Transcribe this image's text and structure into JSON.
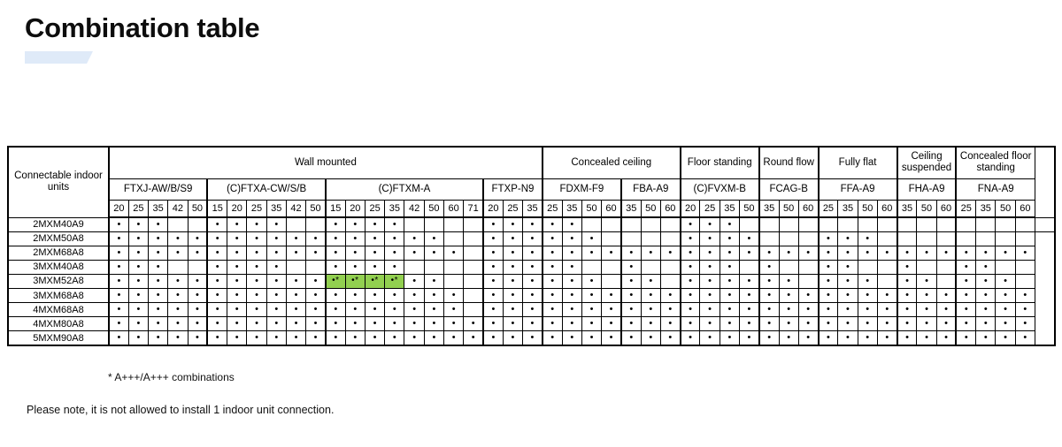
{
  "title": "Combination table",
  "colors": {
    "accent_bar": "#dfeaf8",
    "highlight_green": "#92d050",
    "border": "#000000"
  },
  "legend": {
    "dot": "•",
    "dot_star": "•*"
  },
  "footnotes": {
    "star": "* A+++/A+++ combinations",
    "note": "Please note, it is not allowed to install 1 indoor unit connection."
  },
  "table": {
    "corner_label": "Connectable indoor units",
    "groups": [
      {
        "label": "Wall mounted",
        "models": [
          {
            "label": "FTXJ-AW/B/S9",
            "sizes": [
              "20",
              "25",
              "35",
              "42",
              "50"
            ]
          },
          {
            "label": "(C)FTXA-CW/S/B",
            "sizes": [
              "15",
              "20",
              "25",
              "35",
              "42",
              "50"
            ]
          },
          {
            "label": "(C)FTXM-A",
            "sizes": [
              "15",
              "20",
              "25",
              "35",
              "42",
              "50",
              "60",
              "71"
            ]
          },
          {
            "label": "FTXP-N9",
            "sizes": [
              "20",
              "25",
              "35"
            ]
          }
        ]
      },
      {
        "label": "Concealed ceiling",
        "models": [
          {
            "label": "FDXM-F9",
            "sizes": [
              "25",
              "35",
              "50",
              "60"
            ]
          },
          {
            "label": "FBA-A9",
            "sizes": [
              "35",
              "50",
              "60"
            ]
          }
        ]
      },
      {
        "label": "Floor standing",
        "models": [
          {
            "label": "(C)FVXM-B",
            "sizes": [
              "20",
              "25",
              "35",
              "50"
            ]
          }
        ]
      },
      {
        "label": "Round flow",
        "models": [
          {
            "label": "FCAG-B",
            "sizes": [
              "35",
              "50",
              "60"
            ]
          }
        ]
      },
      {
        "label": "Fully flat",
        "models": [
          {
            "label": "FFA-A9",
            "sizes": [
              "25",
              "35",
              "50",
              "60"
            ]
          }
        ]
      },
      {
        "label": "Ceiling suspended",
        "models": [
          {
            "label": "FHA-A9",
            "sizes": [
              "35",
              "50",
              "60"
            ]
          }
        ]
      },
      {
        "label": "Concealed floor standing",
        "models": [
          {
            "label": "FNA-A9",
            "sizes": [
              "25",
              "35",
              "50",
              "60"
            ]
          }
        ]
      }
    ],
    "rows": [
      {
        "label": "2MXM40A9",
        "cells": [
          "d",
          "d",
          "d",
          "",
          "",
          "d",
          "d",
          "d",
          "d",
          "",
          "",
          "d",
          "d",
          "d",
          "d",
          "",
          "",
          "",
          "",
          "d",
          "d",
          "d",
          "d",
          "d",
          "",
          "",
          "",
          "",
          "",
          "d",
          "d",
          "d",
          "",
          "",
          "",
          "",
          "",
          "",
          "",
          "",
          "",
          "",
          "",
          "",
          "",
          "",
          "",
          ""
        ]
      },
      {
        "label": "2MXM50A8",
        "cells": [
          "d",
          "d",
          "d",
          "d",
          "d",
          "d",
          "d",
          "d",
          "d",
          "d",
          "d",
          "d",
          "d",
          "d",
          "d",
          "d",
          "d",
          "",
          "",
          "d",
          "d",
          "d",
          "d",
          "d",
          "d",
          "",
          "",
          "",
          "",
          "d",
          "d",
          "d",
          "d",
          "",
          "",
          "",
          "d",
          "d",
          "d",
          "",
          "",
          "",
          "",
          "",
          "",
          "",
          ""
        ]
      },
      {
        "label": "2MXM68A8",
        "cells": [
          "d",
          "d",
          "d",
          "d",
          "d",
          "d",
          "d",
          "d",
          "d",
          "d",
          "d",
          "d",
          "d",
          "d",
          "d",
          "d",
          "d",
          "d",
          "",
          "d",
          "d",
          "d",
          "d",
          "d",
          "d",
          "d",
          "d",
          "d",
          "d",
          "d",
          "d",
          "d",
          "d",
          "d",
          "d",
          "d",
          "d",
          "d",
          "d",
          "d",
          "d",
          "d",
          "d",
          "d",
          "d",
          "d",
          "d"
        ]
      },
      {
        "label": "3MXM40A8",
        "cells": [
          "d",
          "d",
          "d",
          "",
          "",
          "d",
          "d",
          "d",
          "d",
          "",
          "",
          "d",
          "d",
          "d",
          "d",
          "",
          "",
          "",
          "",
          "d",
          "d",
          "d",
          "d",
          "d",
          "",
          "",
          "d",
          "",
          "",
          "d",
          "d",
          "d",
          "",
          "d",
          "",
          "",
          "d",
          "d",
          "",
          "",
          "d",
          "",
          "",
          "d",
          "d",
          "",
          ""
        ]
      },
      {
        "label": "3MXM52A8",
        "cells": [
          "d",
          "d",
          "d",
          "d",
          "d",
          "d",
          "d",
          "d",
          "d",
          "d",
          "d",
          "g",
          "g",
          "g",
          "g",
          "d",
          "d",
          "",
          "",
          "d",
          "d",
          "d",
          "d",
          "d",
          "d",
          "",
          "d",
          "d",
          "",
          "d",
          "d",
          "d",
          "d",
          "d",
          "d",
          "",
          "d",
          "d",
          "d",
          "",
          "d",
          "d",
          "",
          "d",
          "d",
          "d",
          ""
        ]
      },
      {
        "label": "3MXM68A8",
        "cells": [
          "d",
          "d",
          "d",
          "d",
          "d",
          "d",
          "d",
          "d",
          "d",
          "d",
          "d",
          "d",
          "d",
          "d",
          "d",
          "d",
          "d",
          "d",
          "",
          "d",
          "d",
          "d",
          "d",
          "d",
          "d",
          "d",
          "d",
          "d",
          "d",
          "d",
          "d",
          "d",
          "d",
          "d",
          "d",
          "d",
          "d",
          "d",
          "d",
          "d",
          "d",
          "d",
          "d",
          "d",
          "d",
          "d",
          "d"
        ]
      },
      {
        "label": "4MXM68A8",
        "cells": [
          "d",
          "d",
          "d",
          "d",
          "d",
          "d",
          "d",
          "d",
          "d",
          "d",
          "d",
          "d",
          "d",
          "d",
          "d",
          "d",
          "d",
          "d",
          "",
          "d",
          "d",
          "d",
          "d",
          "d",
          "d",
          "d",
          "d",
          "d",
          "d",
          "d",
          "d",
          "d",
          "d",
          "d",
          "d",
          "d",
          "d",
          "d",
          "d",
          "d",
          "d",
          "d",
          "d",
          "d",
          "d",
          "d",
          "d"
        ]
      },
      {
        "label": "4MXM80A8",
        "cells": [
          "d",
          "d",
          "d",
          "d",
          "d",
          "d",
          "d",
          "d",
          "d",
          "d",
          "d",
          "d",
          "d",
          "d",
          "d",
          "d",
          "d",
          "d",
          "d",
          "d",
          "d",
          "d",
          "d",
          "d",
          "d",
          "d",
          "d",
          "d",
          "d",
          "d",
          "d",
          "d",
          "d",
          "d",
          "d",
          "d",
          "d",
          "d",
          "d",
          "d",
          "d",
          "d",
          "d",
          "d",
          "d",
          "d",
          "d"
        ]
      },
      {
        "label": "5MXM90A8",
        "cells": [
          "d",
          "d",
          "d",
          "d",
          "d",
          "d",
          "d",
          "d",
          "d",
          "d",
          "d",
          "d",
          "d",
          "d",
          "d",
          "d",
          "d",
          "d",
          "d",
          "d",
          "d",
          "d",
          "d",
          "d",
          "d",
          "d",
          "d",
          "d",
          "d",
          "d",
          "d",
          "d",
          "d",
          "d",
          "d",
          "d",
          "d",
          "d",
          "d",
          "d",
          "d",
          "d",
          "d",
          "d",
          "d",
          "d",
          "d"
        ]
      }
    ]
  }
}
